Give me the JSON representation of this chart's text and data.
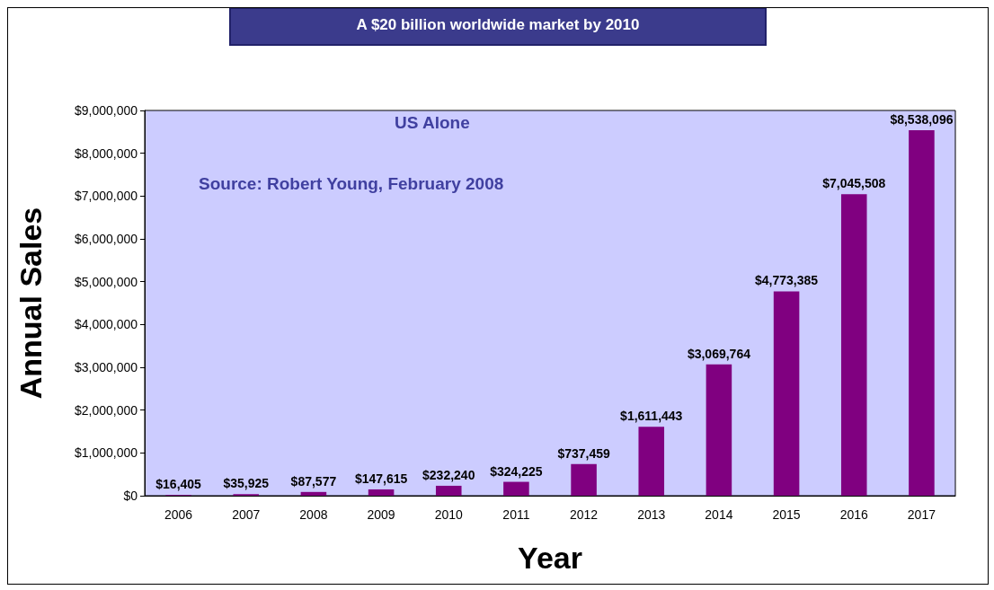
{
  "chart_data": {
    "type": "bar",
    "title": "A $20 billion worldwide market by 2010",
    "xlabel": "Year",
    "ylabel": "Annual Sales",
    "annotations": [
      "US Alone",
      "Source: Robert Young, February 2008"
    ],
    "categories": [
      "2006",
      "2007",
      "2008",
      "2009",
      "2010",
      "2011",
      "2012",
      "2013",
      "2014",
      "2015",
      "2016",
      "2017"
    ],
    "values": [
      16405,
      35925,
      87577,
      147615,
      232240,
      324225,
      737459,
      1611443,
      3069764,
      4773385,
      7045508,
      8538096
    ],
    "value_labels": [
      "$16,405",
      "$35,925",
      "$87,577",
      "$147,615",
      "$232,240",
      "$324,225",
      "$737,459",
      "$1,611,443",
      "$3,069,764",
      "$4,773,385",
      "$7,045,508",
      "$8,538,096"
    ],
    "color": "#800080",
    "ylim": [
      0,
      9000000
    ],
    "yticks": [
      {
        "value": 0,
        "label": "$0"
      },
      {
        "value": 1000000,
        "label": "$1,000,000"
      },
      {
        "value": 2000000,
        "label": "$2,000,000"
      },
      {
        "value": 3000000,
        "label": "$3,000,000"
      },
      {
        "value": 4000000,
        "label": "$4,000,000"
      },
      {
        "value": 5000000,
        "label": "$5,000,000"
      },
      {
        "value": 6000000,
        "label": "$6,000,000"
      },
      {
        "value": 7000000,
        "label": "$7,000,000"
      },
      {
        "value": 8000000,
        "label": "$8,000,000"
      },
      {
        "value": 9000000,
        "label": "$9,000,000"
      }
    ],
    "grid": false
  }
}
